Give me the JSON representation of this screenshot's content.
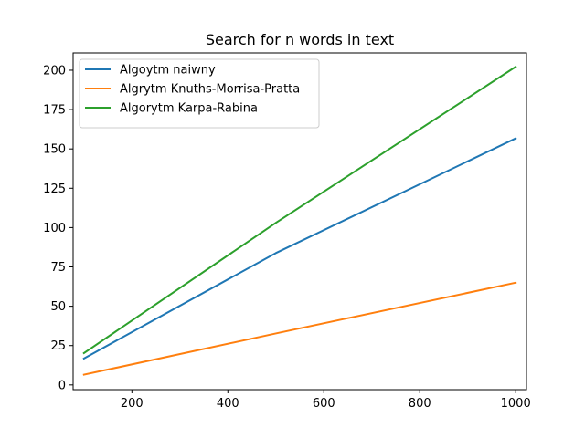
{
  "chart_data": {
    "type": "line",
    "title": "Search for n words in text",
    "xlabel": "",
    "ylabel": "",
    "xlim": [
      77.5,
      1022.5
    ],
    "ylim": [
      -3,
      211
    ],
    "x_ticks": [
      200,
      400,
      600,
      800,
      1000
    ],
    "y_ticks": [
      0,
      25,
      50,
      75,
      100,
      125,
      150,
      175,
      200
    ],
    "grid": false,
    "legend_position": "top-left",
    "series": [
      {
        "name": "Algoytm naiwny",
        "color": "#1f77b4",
        "x": [
          100,
          500,
          1000
        ],
        "y": [
          16.8,
          83.8,
          156.7
        ]
      },
      {
        "name": "Algrytm Knuths-Morrisa-Pratta",
        "color": "#ff7f0e",
        "x": [
          100,
          500,
          1000
        ],
        "y": [
          6.5,
          32.7,
          65.0
        ]
      },
      {
        "name": "Algorytm Karpa-Rabina",
        "color": "#2ca02c",
        "x": [
          100,
          500,
          1000
        ],
        "y": [
          20.2,
          103.0,
          202.2
        ]
      }
    ]
  }
}
